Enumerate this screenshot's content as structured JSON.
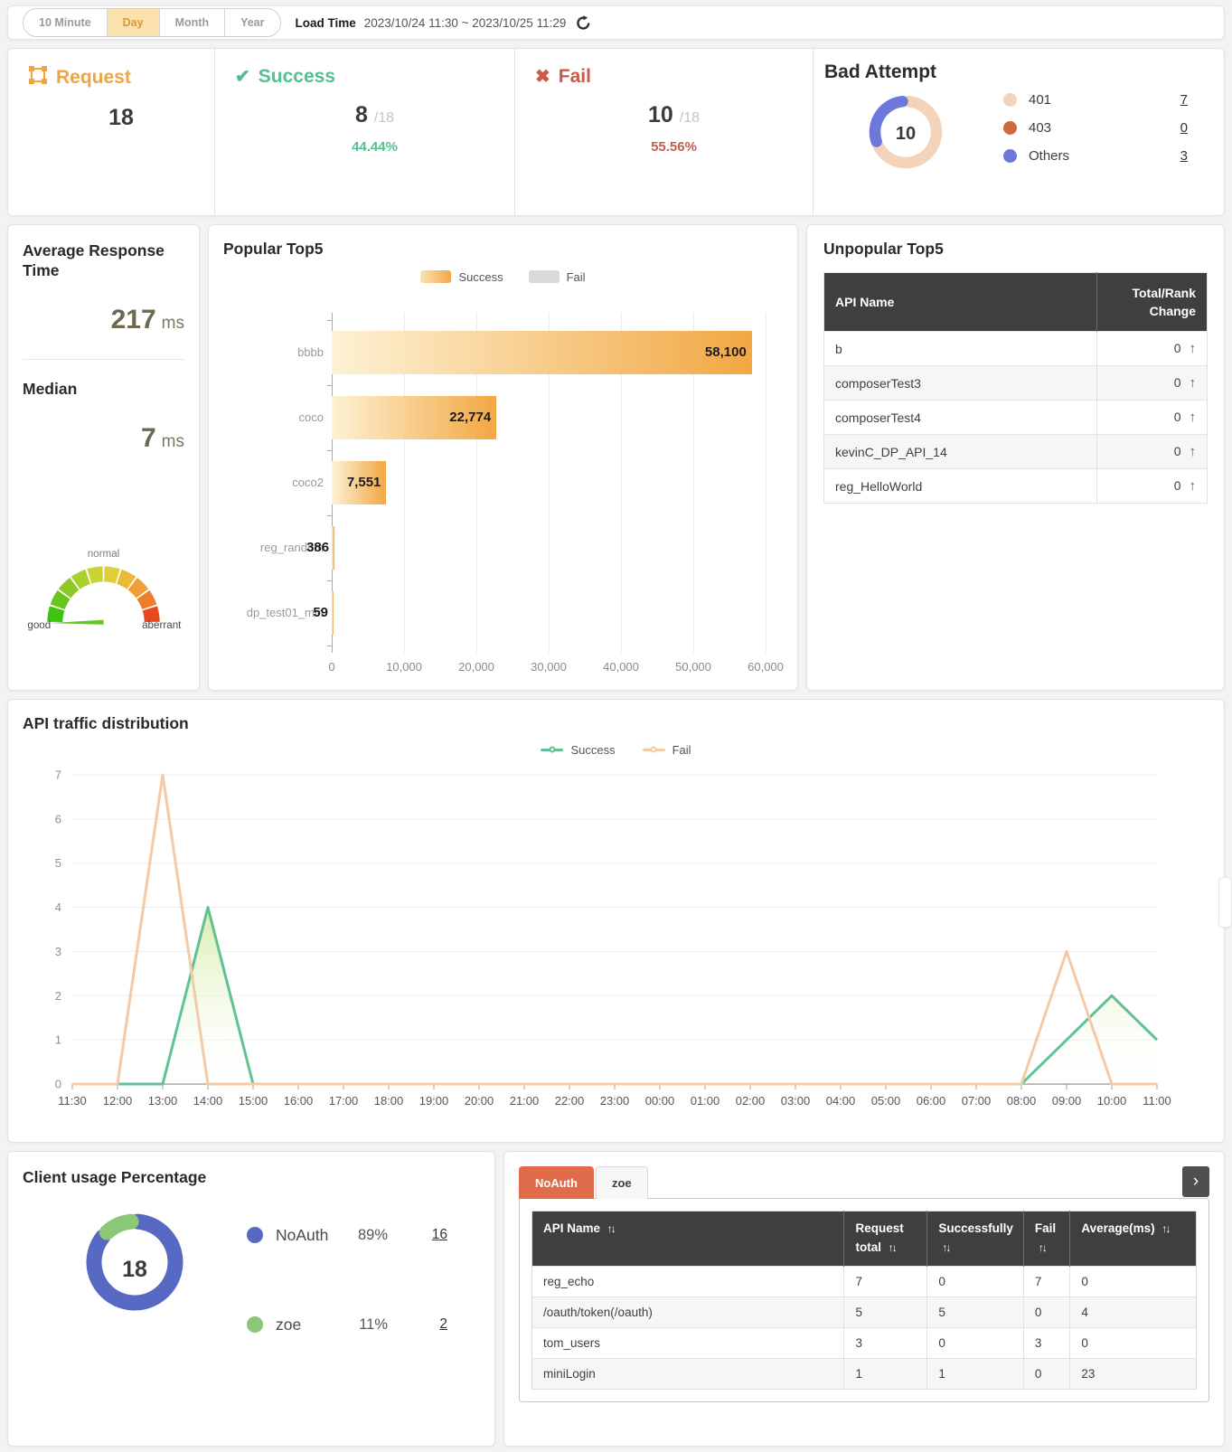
{
  "toolbar": {
    "ranges": [
      "10 Minute",
      "Day",
      "Month",
      "Year"
    ],
    "active_range": "Day",
    "load_time_label": "Load Time",
    "load_time_value": "2023/10/24 11:30 ~ 2023/10/25 11:29"
  },
  "stats": {
    "request": {
      "label": "Request",
      "value": "18"
    },
    "success": {
      "label": "Success",
      "value": "8",
      "of_total": "/18",
      "percent": "44.44%"
    },
    "fail": {
      "label": "Fail",
      "value": "10",
      "of_total": "/18",
      "percent": "55.56%"
    },
    "bad_attempt": {
      "title": "Bad Attempt",
      "center_value": "10",
      "legend": [
        {
          "label": "401",
          "count": "7",
          "color": "#f3d3ba"
        },
        {
          "label": "403",
          "count": "0",
          "color": "#ce6a42"
        },
        {
          "label": "Others",
          "count": "3",
          "color": "#6d78dc"
        }
      ]
    }
  },
  "avg_panel": {
    "title": "Average Response Time",
    "value": "217",
    "unit": "ms",
    "median_title": "Median",
    "median_value": "7",
    "median_unit": "ms",
    "gauge_labels": {
      "left": "good",
      "top": "normal",
      "right": "aberrant"
    }
  },
  "popular": {
    "title": "Popular Top5"
  },
  "unpopular": {
    "title": "Unpopular Top5",
    "columns": [
      "API Name",
      "Total/Rank Change"
    ],
    "rows": [
      {
        "name": "b",
        "total": "0"
      },
      {
        "name": "composerTest3",
        "total": "0"
      },
      {
        "name": "composerTest4",
        "total": "0"
      },
      {
        "name": "kevinC_DP_API_14",
        "total": "0"
      },
      {
        "name": "reg_HelloWorld",
        "total": "0"
      }
    ]
  },
  "traffic": {
    "title": "API traffic distribution"
  },
  "client_usage": {
    "title": "Client usage Percentage",
    "center_value": "18",
    "legend": [
      {
        "label": "NoAuth",
        "percent": "89%",
        "count": "16",
        "color": "#5769c3"
      },
      {
        "label": "zoe",
        "percent": "11%",
        "count": "2",
        "color": "#8ac877"
      }
    ]
  },
  "client_table": {
    "tabs": [
      {
        "label": "NoAuth",
        "active": true
      },
      {
        "label": "zoe",
        "active": false
      }
    ],
    "columns": [
      "API Name",
      "Request total",
      "Successfully",
      "Fail",
      "Average(ms)"
    ],
    "col_widths": [
      "47%",
      "12.5%",
      "14.5%",
      "7%",
      "19%"
    ],
    "rows": [
      [
        "reg_echo",
        "7",
        "0",
        "7",
        "0"
      ],
      [
        "/oauth/token(/oauth)",
        "5",
        "5",
        "0",
        "4"
      ],
      [
        "tom_users",
        "3",
        "0",
        "3",
        "0"
      ],
      [
        "miniLogin",
        "1",
        "1",
        "0",
        "23"
      ]
    ]
  },
  "icons": {
    "check": "✔",
    "cross": "✖",
    "up_arrow": "↑",
    "sort": "↑↓",
    "chevron_right": "›"
  },
  "chart_data": [
    {
      "id": "popular_top5",
      "type": "bar",
      "orientation": "horizontal",
      "legend": [
        "Success",
        "Fail"
      ],
      "categories": [
        "bbbb",
        "coco",
        "coco2",
        "reg_random",
        "dp_test01_min"
      ],
      "values": [
        58100,
        22774,
        7551,
        386,
        59
      ],
      "value_labels": [
        "58,100",
        "22,774",
        "7,551",
        "386",
        "59"
      ],
      "xlim": [
        0,
        60000
      ],
      "xticks": [
        "0",
        "10,000",
        "20,000",
        "30,000",
        "40,000",
        "50,000",
        "60,000"
      ],
      "colors": {
        "success_gradient": [
          "#fdf2d4",
          "#f2a743"
        ],
        "fail": "#d9d9d9"
      }
    },
    {
      "id": "api_traffic",
      "type": "line",
      "x": [
        "11:30",
        "12:00",
        "13:00",
        "14:00",
        "15:00",
        "16:00",
        "17:00",
        "18:00",
        "19:00",
        "20:00",
        "21:00",
        "22:00",
        "23:00",
        "00:00",
        "01:00",
        "02:00",
        "03:00",
        "04:00",
        "05:00",
        "06:00",
        "07:00",
        "08:00",
        "09:00",
        "10:00",
        "11:00"
      ],
      "ylim": [
        0,
        7
      ],
      "yticks": [
        "0",
        "1",
        "2",
        "3",
        "4",
        "5",
        "6",
        "7"
      ],
      "series": [
        {
          "name": "Success",
          "color": "#60c292",
          "area_fill": [
            "#d5eba4",
            "#ffffff"
          ],
          "values": [
            0,
            0,
            0,
            4,
            0,
            0,
            0,
            0,
            0,
            0,
            0,
            0,
            0,
            0,
            0,
            0,
            0,
            0,
            0,
            0,
            0,
            0,
            1,
            2,
            1
          ]
        },
        {
          "name": "Fail",
          "color": "#f4caa6",
          "values": [
            0,
            0,
            7,
            0,
            0,
            0,
            0,
            0,
            0,
            0,
            0,
            0,
            0,
            0,
            0,
            0,
            0,
            0,
            0,
            0,
            0,
            0,
            3,
            0,
            0
          ]
        }
      ],
      "legend_position": "top-center",
      "grid": true
    },
    {
      "id": "bad_attempt_donut",
      "type": "pie",
      "center_label": "10",
      "slices": [
        {
          "label": "401",
          "value": 7,
          "color": "#f3d3ba"
        },
        {
          "label": "403",
          "value": 0,
          "color": "#ce6a42"
        },
        {
          "label": "Others",
          "value": 3,
          "color": "#6d78dc"
        }
      ]
    },
    {
      "id": "client_usage_donut",
      "type": "pie",
      "center_label": "18",
      "slices": [
        {
          "label": "NoAuth",
          "value": 16,
          "color": "#5769c3"
        },
        {
          "label": "zoe",
          "value": 2,
          "color": "#8ac877"
        }
      ]
    },
    {
      "id": "response_gauge",
      "type": "gauge",
      "labels": [
        "good",
        "normal",
        "aberrant"
      ],
      "segment_colors": [
        "#3fc313",
        "#68c51b",
        "#8cca23",
        "#abd02b",
        "#c9d433",
        "#e0cf39",
        "#ecba39",
        "#f09f35",
        "#ee7e2a",
        "#e8481c"
      ],
      "needle_color": "#64c620",
      "needle_position": "low"
    }
  ]
}
